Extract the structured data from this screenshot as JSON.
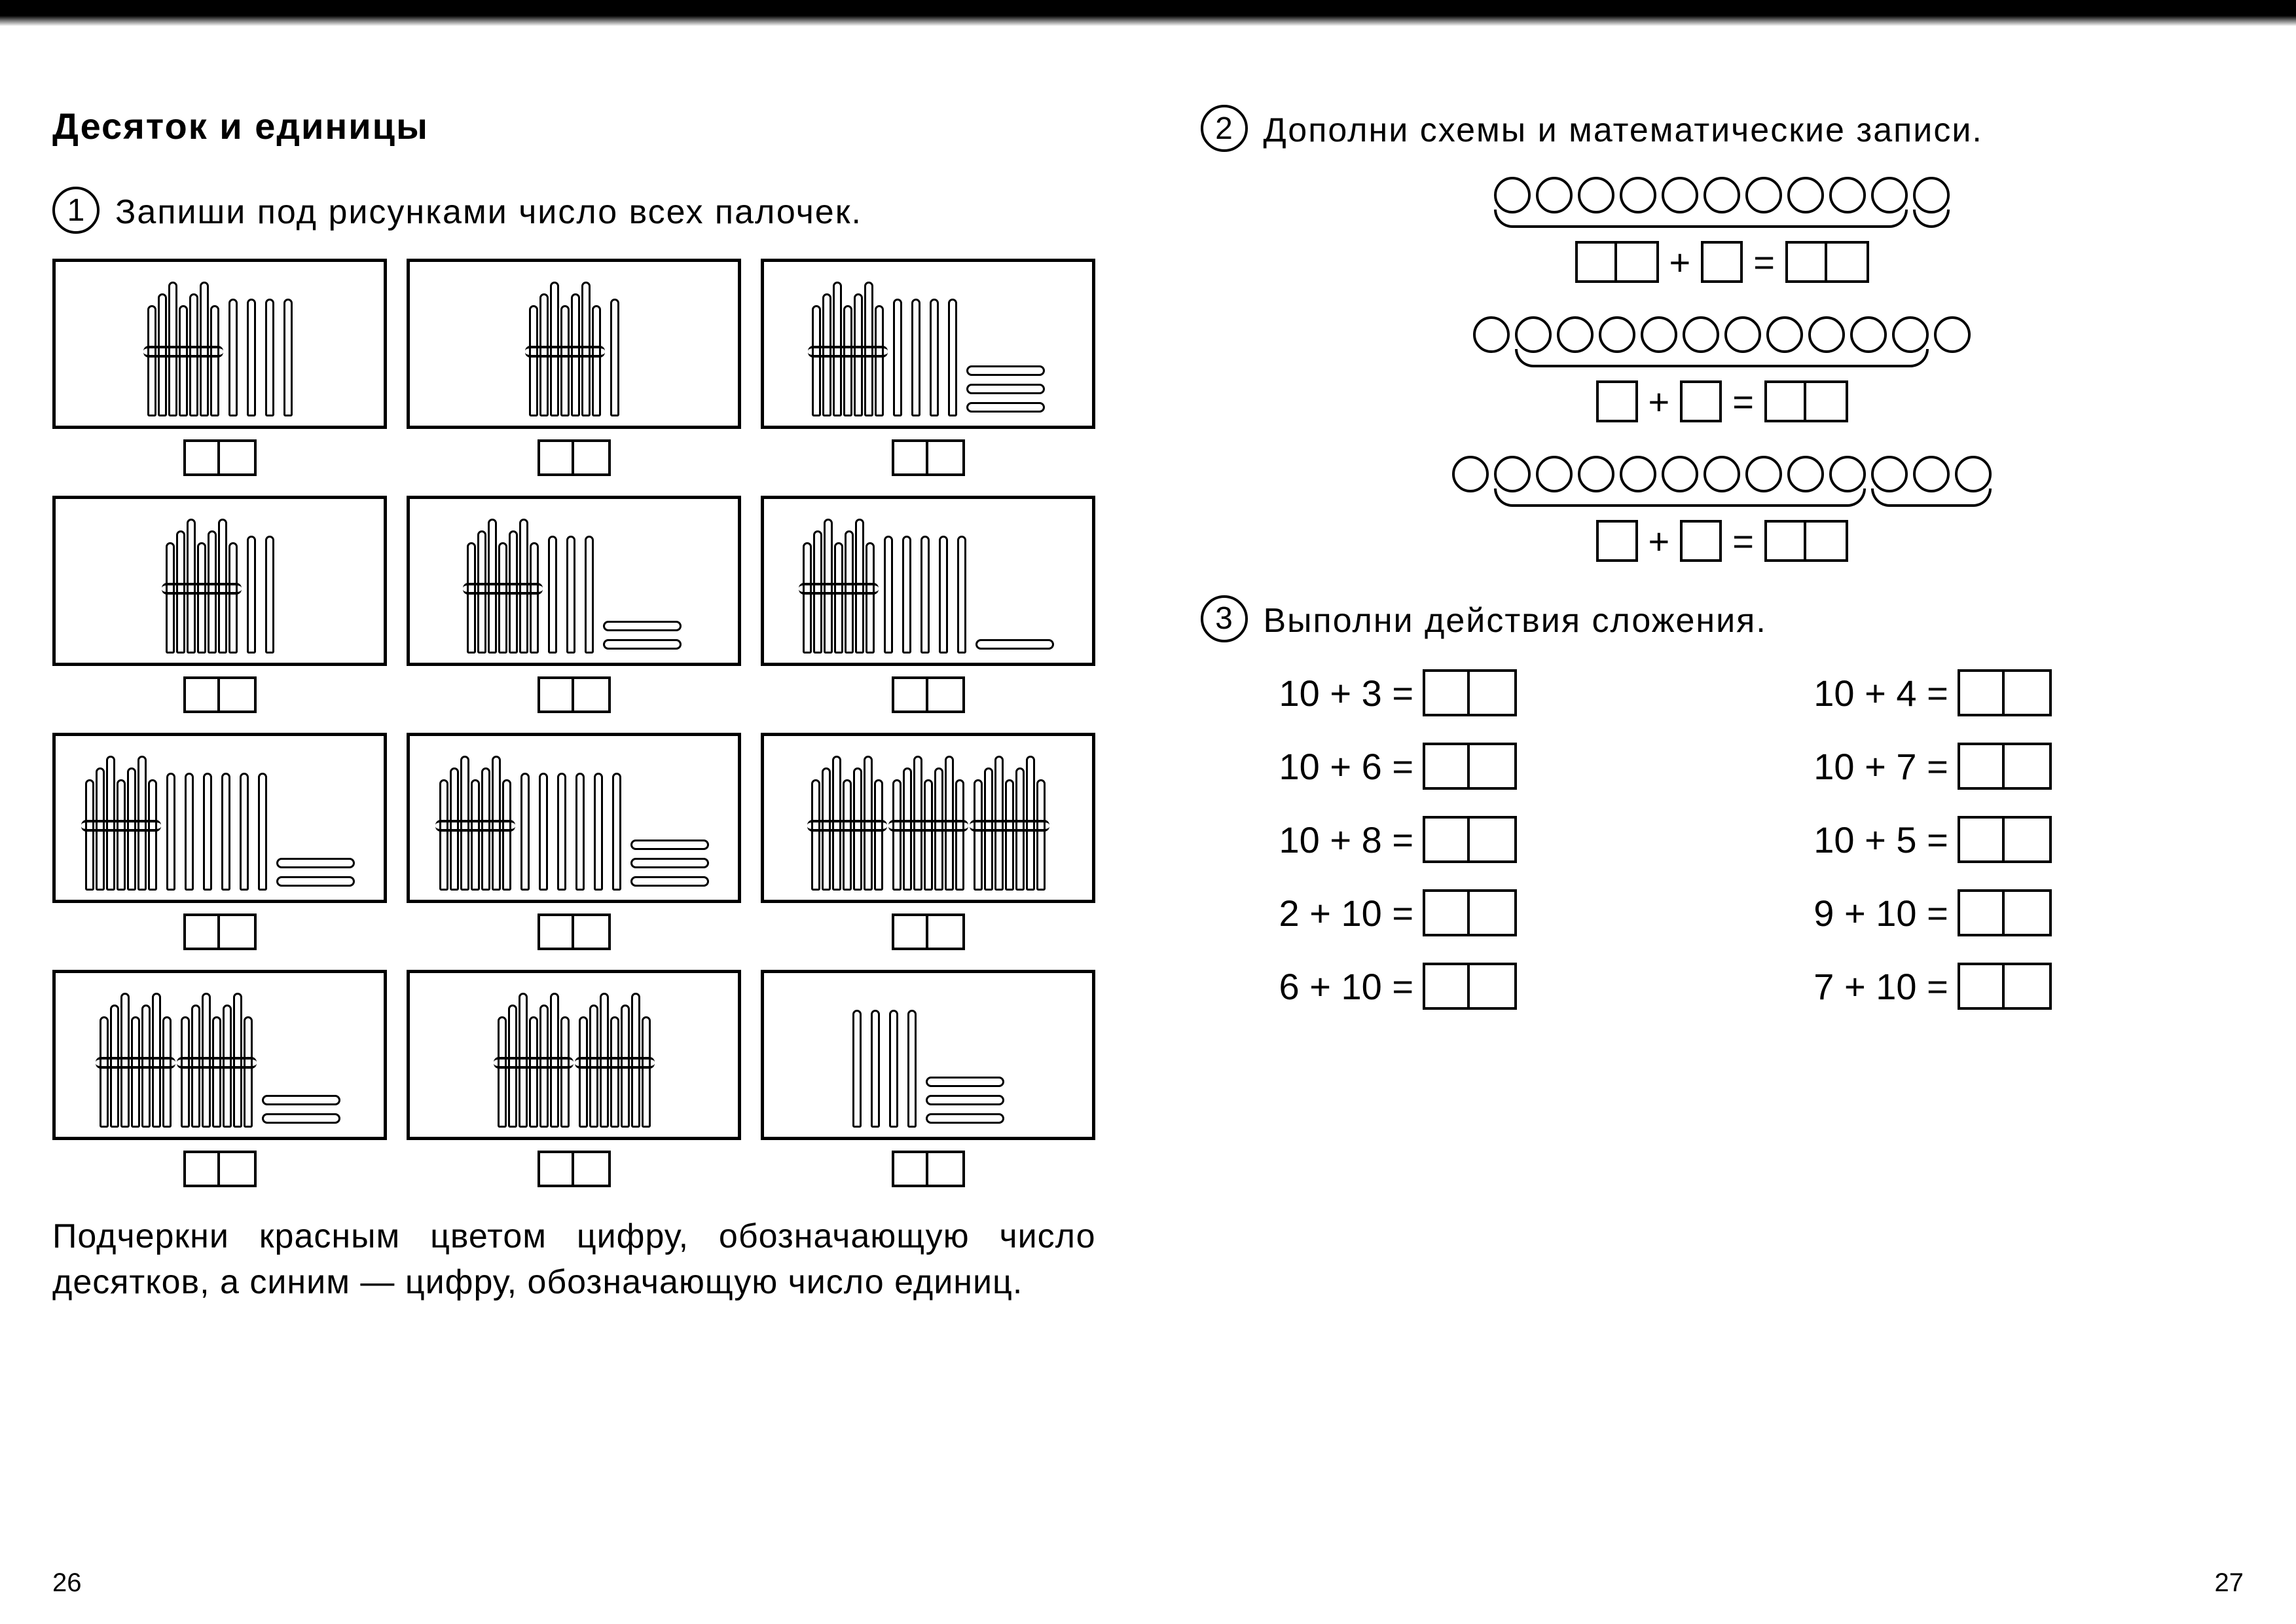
{
  "left_page_number": "26",
  "right_page_number": "27",
  "title": "Десяток и единицы",
  "task1": {
    "num": "1",
    "text": "Запиши под рисунками число всех палочек."
  },
  "stick_cells": [
    {
      "bundles": 1,
      "standing": 4,
      "lying": 0
    },
    {
      "bundles": 1,
      "standing": 1,
      "lying": 0
    },
    {
      "bundles": 1,
      "standing": 4,
      "lying": 3
    },
    {
      "bundles": 1,
      "standing": 2,
      "lying": 0
    },
    {
      "bundles": 1,
      "standing": 3,
      "lying": 2
    },
    {
      "bundles": 1,
      "standing": 5,
      "lying": 1
    },
    {
      "bundles": 1,
      "standing": 6,
      "lying": 2
    },
    {
      "bundles": 1,
      "standing": 6,
      "lying": 3
    },
    {
      "bundles": 3,
      "standing": 0,
      "lying": 0
    },
    {
      "bundles": 2,
      "standing": 0,
      "lying": 2
    },
    {
      "bundles": 2,
      "standing": 0,
      "lying": 0
    },
    {
      "bundles": 0,
      "standing": 4,
      "lying": 3
    }
  ],
  "task1_footer": "Подчеркни красным цветом цифру, обозначающую число десятков, а синим — цифру, обозначающую число единиц.",
  "task2": {
    "num": "2",
    "text": "Дополни схемы и математические записи."
  },
  "schemes": [
    {
      "circles": 11,
      "arcs": [
        {
          "start": 0,
          "end": 9
        },
        {
          "start": 10,
          "end": 10
        }
      ],
      "left_double": true
    },
    {
      "circles": 12,
      "arcs": [
        {
          "start": 1,
          "end": 10
        }
      ],
      "left_double": false
    },
    {
      "circles": 13,
      "arcs": [
        {
          "start": 1,
          "end": 9
        },
        {
          "start": 10,
          "end": 12
        }
      ],
      "left_double": false
    }
  ],
  "op_plus": "+",
  "op_eq": "=",
  "task3": {
    "num": "3",
    "text": "Выполни действия сложения."
  },
  "additions_left": [
    "10 + 3 =",
    "10 + 6 =",
    "10 + 8 =",
    "2 + 10 =",
    "6 + 10 ="
  ],
  "additions_right": [
    "10 + 4 =",
    "10 + 7 =",
    "10 + 5 =",
    "9 + 10 =",
    "7 + 10 ="
  ]
}
